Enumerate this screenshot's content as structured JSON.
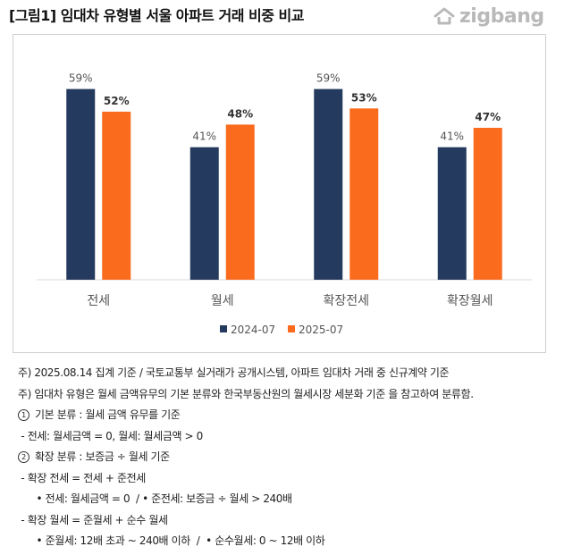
{
  "header": {
    "title": "[그림1] 임대차 유형별 서울 아파트 거래 비중 비교",
    "brand": "zigbang"
  },
  "chart_data": {
    "type": "bar",
    "categories": [
      "전세",
      "월세",
      "확장전세",
      "확장월세"
    ],
    "series": [
      {
        "name": "2024-07",
        "values": [
          59,
          41,
          59,
          41
        ],
        "labels": [
          "59%",
          "41%",
          "59%",
          "41%"
        ],
        "color": "#243a5e",
        "label_bold": false
      },
      {
        "name": "2025-07",
        "values": [
          52,
          48,
          53,
          47
        ],
        "labels": [
          "52%",
          "48%",
          "53%",
          "47%"
        ],
        "color": "#fb6b1e",
        "label_bold": true
      }
    ],
    "ylim": [
      0,
      60
    ],
    "grid": false,
    "legend": "bottom-center"
  },
  "notes": [
    {
      "marker": "",
      "text": "주) 2025.08.14 집계 기준 / 국토교통부 실거래가 공개시스템, 아파트 임대차 거래 중 신규계약 기준"
    },
    {
      "marker": "",
      "text": "주) 임대차 유형은 월세 금액유무의 기본 분류와 한국부동산원의 월세시장 세분화 기준 을 참고하여 분류함."
    },
    {
      "marker": "1",
      "text": "기본 분류 : 월세 금액 유무를 기준"
    },
    {
      "marker": "",
      "text": " - 전세: 월세금액 = 0, 월세: 월세금액 > 0"
    },
    {
      "marker": "2",
      "text": "확장 분류 : 보증금 ÷ 월세 기준"
    },
    {
      "marker": "",
      "text": " - 확장 전세 = 전세 + 준전세"
    },
    {
      "marker": "",
      "text": "      • 전세: 월세금액 = 0  / • 준전세: 보증금 ÷ 월세 > 240배"
    },
    {
      "marker": "",
      "text": " - 확장 월세 = 준월세 + 순수 월세"
    },
    {
      "marker": "",
      "text": "      • 준월세: 12배 초과 ~ 240배 이하  /  • 순수월세: 0 ~ 12배 이하"
    }
  ]
}
